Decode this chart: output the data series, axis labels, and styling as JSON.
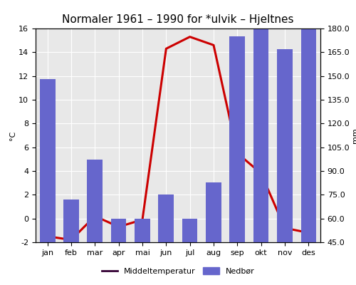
{
  "title": "Normaler 1961 – 1990 for *ulvik – Hjeltnes",
  "months": [
    "jan",
    "feb",
    "mar",
    "apr",
    "mai",
    "jun",
    "jul",
    "aug",
    "sep",
    "okt",
    "nov",
    "des"
  ],
  "precipitation_mm": [
    148,
    72,
    97,
    60,
    60,
    75,
    60,
    83,
    175,
    180,
    167,
    180
  ],
  "temperature_c": [
    -1.5,
    -1.8,
    0.2,
    -0.7,
    -0.1,
    14.3,
    15.3,
    14.6,
    5.5,
    3.8,
    -0.8,
    -1.2
  ],
  "bar_color": "#6666cc",
  "line_color": "#cc0000",
  "legend_line_color": "#330033",
  "ylabel_left": "°C",
  "ylabel_right": "mm",
  "ylim_left": [
    -2.0,
    16.0
  ],
  "ylim_right": [
    45.0,
    180.0
  ],
  "yticks_left": [
    -2.0,
    0.0,
    2.0,
    4.0,
    6.0,
    8.0,
    10.0,
    12.0,
    14.0,
    16.0
  ],
  "yticks_right": [
    45.0,
    60.0,
    75.0,
    90.0,
    105.0,
    120.0,
    135.0,
    150.0,
    165.0,
    180.0
  ],
  "legend_temp": "Middeltemperatur",
  "legend_precip": "Nedbør",
  "bg_color": "#e8e8e8",
  "title_fontsize": 11,
  "axis_fontsize": 8,
  "tick_fontsize": 8,
  "grid_color": "#ffffff"
}
